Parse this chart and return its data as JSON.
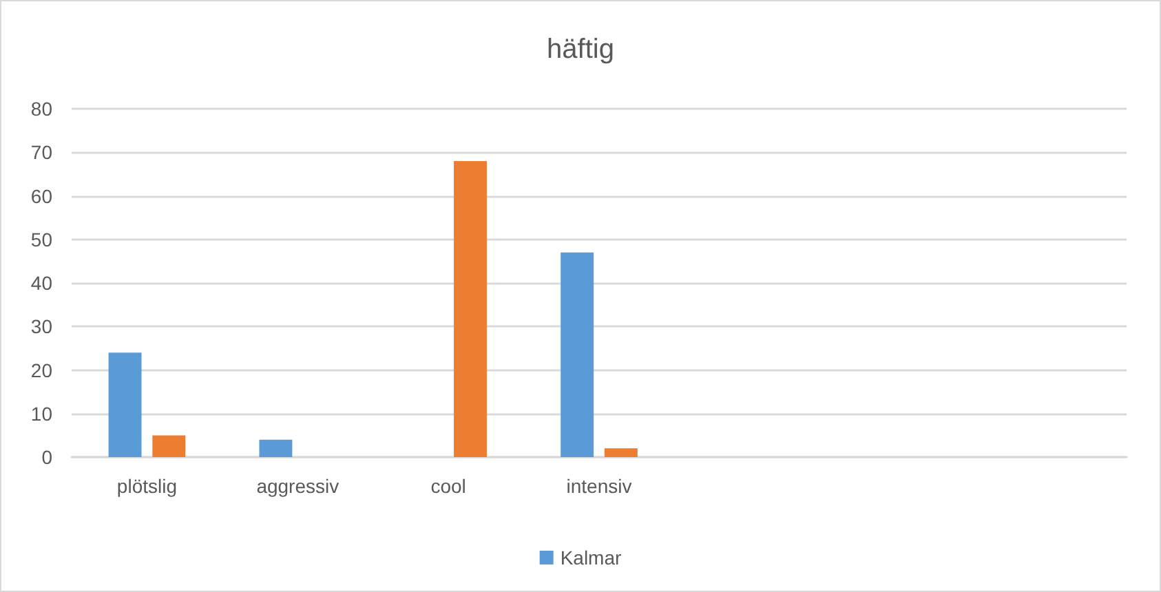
{
  "chart_data": {
    "type": "bar",
    "title": "häftig",
    "categories": [
      "plötslig",
      "aggressiv",
      "cool",
      "intensiv",
      null,
      null,
      null
    ],
    "series": [
      {
        "name": "Kalmar",
        "color": "#5b9bd5",
        "values": [
          24,
          4,
          null,
          47,
          null,
          null,
          null
        ]
      },
      {
        "color": "#ed7d31",
        "values": [
          5,
          null,
          68,
          2,
          null,
          null,
          null
        ]
      }
    ],
    "ylim": [
      0,
      80
    ],
    "yticks": [
      0,
      10,
      20,
      30,
      40,
      50,
      60,
      70,
      80
    ],
    "grid": "y",
    "legend": "bottom"
  }
}
